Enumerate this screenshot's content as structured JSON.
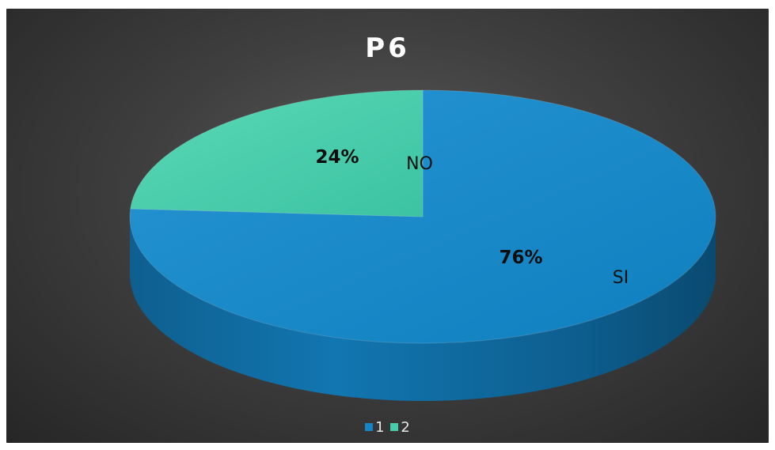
{
  "chart_data": {
    "type": "pie",
    "title": "P6",
    "categories": [
      "1",
      "2"
    ],
    "values": [
      76,
      24
    ],
    "data_labels": [
      "76%",
      "24%"
    ],
    "category_labels": [
      "SI",
      "NO"
    ],
    "colors": [
      "#1585c5",
      "#46ccab"
    ],
    "legend": {
      "position": "bottom",
      "items": [
        "1",
        "2"
      ]
    },
    "style": "3d-exploded-none"
  }
}
